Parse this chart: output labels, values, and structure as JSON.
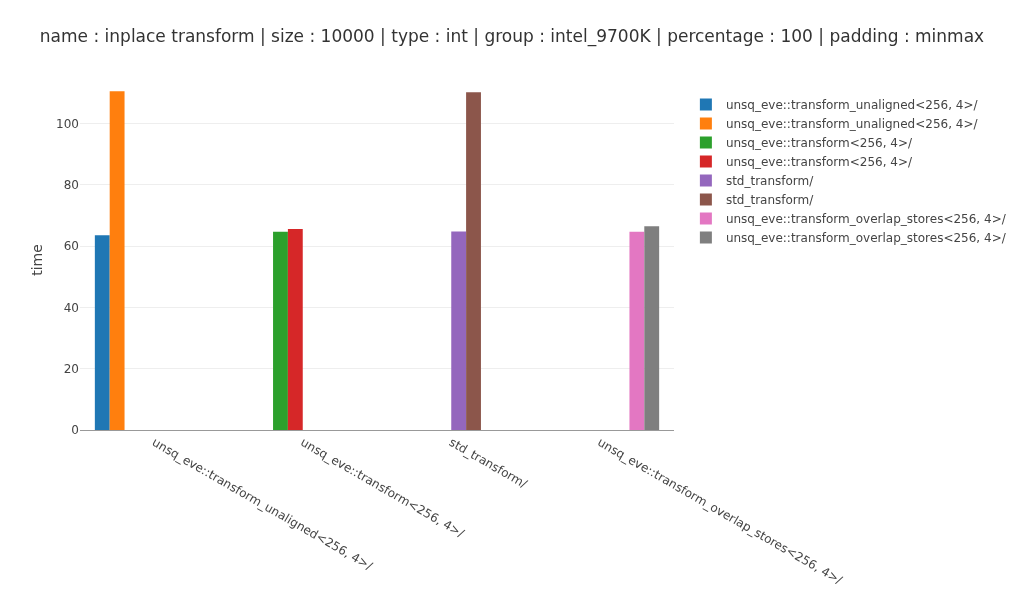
{
  "chart_data": {
    "type": "bar",
    "title": "name : inplace transform | size : 10000 | type : int | group : intel_9700K | percentage : 100 | padding : minmax",
    "ylabel": "time",
    "categories": [
      "unsq_eve::transform_unaligned<256, 4>/",
      "unsq_eve::transform<256, 4>/",
      "std_transform/",
      "unsq_eve::transform_overlap_stores<256, 4>/"
    ],
    "series": [
      {
        "name": "unsq_eve::transform_unaligned<256, 4>/",
        "color": "#1f77b4",
        "values": [
          63.6,
          null,
          null,
          null
        ]
      },
      {
        "name": "unsq_eve::transform_unaligned<256, 4>/",
        "color": "#ff7f0e",
        "values": [
          110.6,
          null,
          null,
          null
        ]
      },
      {
        "name": "unsq_eve::transform<256, 4>/",
        "color": "#2ca02c",
        "values": [
          null,
          64.7,
          null,
          null
        ]
      },
      {
        "name": "unsq_eve::transform<256, 4>/",
        "color": "#d62728",
        "values": [
          null,
          65.6,
          null,
          null
        ]
      },
      {
        "name": "std_transform/",
        "color": "#9467bd",
        "values": [
          null,
          null,
          64.8,
          null
        ]
      },
      {
        "name": "std_transform/",
        "color": "#8c564b",
        "values": [
          null,
          null,
          110.3,
          null
        ]
      },
      {
        "name": "unsq_eve::transform_overlap_stores<256, 4>/",
        "color": "#e377c2",
        "values": [
          null,
          null,
          null,
          64.7
        ]
      },
      {
        "name": "unsq_eve::transform_overlap_stores<256, 4>/",
        "color": "#7f7f7f",
        "values": [
          null,
          null,
          null,
          66.5
        ]
      }
    ],
    "ylim": [
      0,
      111
    ],
    "yticks": [
      0,
      20,
      40,
      60,
      80,
      100
    ],
    "grid": "y",
    "legend": "top right"
  }
}
